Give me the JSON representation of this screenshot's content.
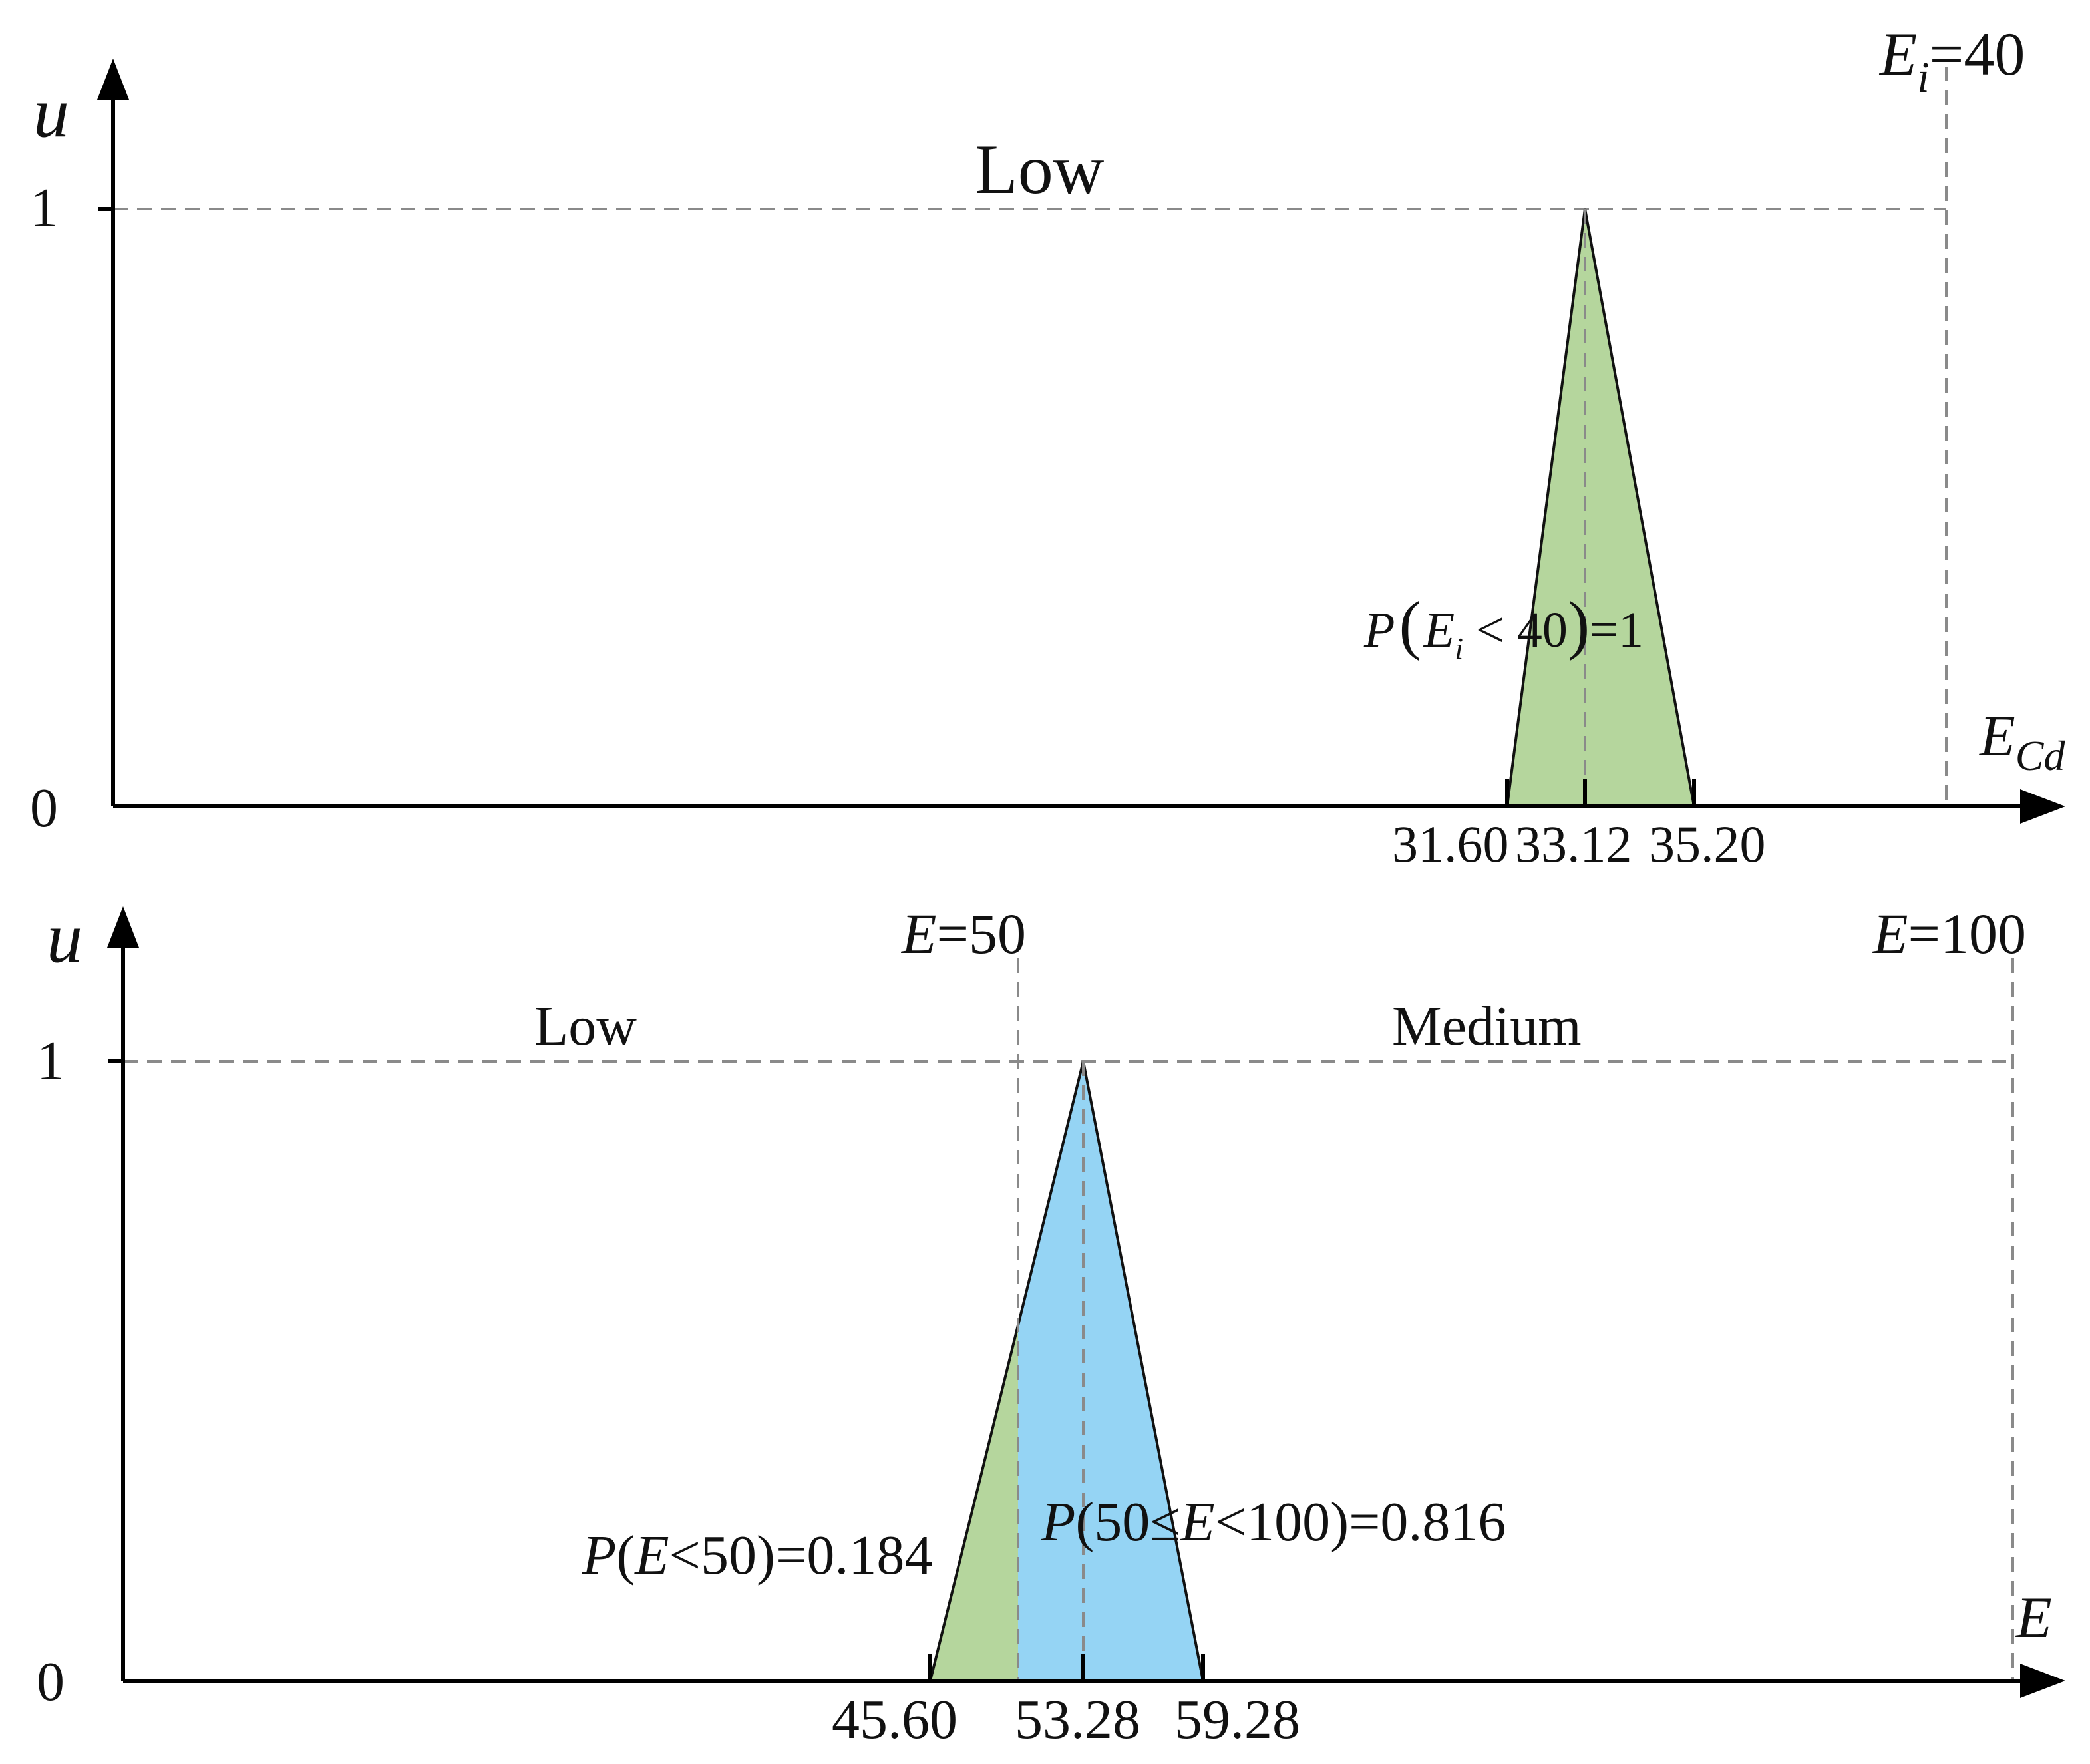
{
  "colors": {
    "low_fill": "#b5d69d",
    "medium_fill": "#95d4f4",
    "axis": "#000000",
    "guide": "#8a8a8a"
  },
  "panels": [
    {
      "id": "top",
      "y_label": "u",
      "y_ticks": [
        "0",
        "1"
      ],
      "x_label_main": "E",
      "x_label_sub": "Cd",
      "region_labels": [
        "Low"
      ],
      "thresholds": [
        {
          "value": 40,
          "label_main": "E",
          "label_sub": "i",
          "label_rest": "=40"
        }
      ],
      "triangle": {
        "left": 31.6,
        "peak": 33.12,
        "right": 35.2
      },
      "tick_labels": [
        "31.60",
        "33.12",
        "35.20"
      ],
      "probabilities": [
        {
          "p": "P",
          "open": "(",
          "var": "E",
          "sub": "i",
          "rest": " < 40",
          "close": ")",
          "value": "=1"
        }
      ]
    },
    {
      "id": "bottom",
      "y_label": "u",
      "y_ticks": [
        "0",
        "1"
      ],
      "x_label_main": "E",
      "region_labels": [
        "Low",
        "Medium"
      ],
      "thresholds": [
        {
          "value": 50,
          "label_main": "E",
          "label_rest": "=50"
        },
        {
          "value": 100,
          "label_main": "E",
          "label_rest": "=100"
        }
      ],
      "triangle": {
        "left": 45.6,
        "peak": 53.28,
        "right": 59.28
      },
      "tick_labels": [
        "45.60",
        "53.28",
        "59.28"
      ],
      "probabilities": [
        {
          "p": "P",
          "open": "(",
          "var": "E",
          "rest": "<50)",
          "value": "=0.184"
        },
        {
          "p": "P",
          "open": "(50≤",
          "var": "E",
          "rest": "<100)",
          "value": "=0.816"
        }
      ]
    }
  ]
}
